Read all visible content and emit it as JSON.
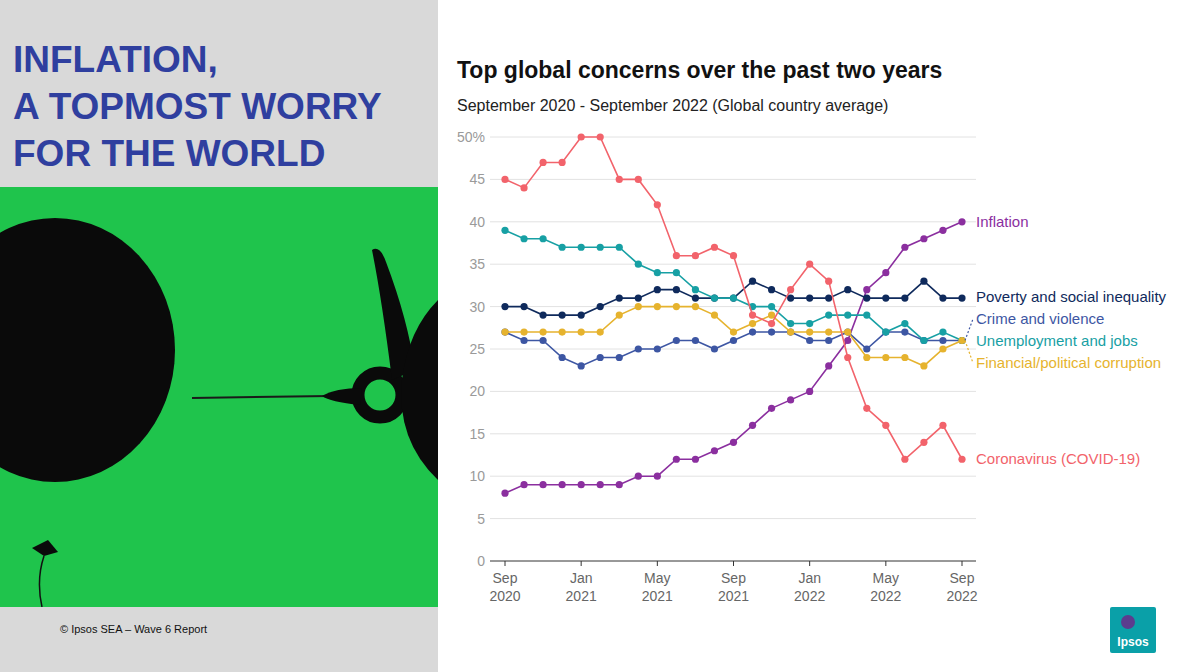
{
  "panel": {
    "title_lines": [
      "INFLATION,",
      "A TOPMOST WORRY",
      "FOR THE WORLD"
    ],
    "footer": "© Ipsos SEA – Wave 6 Report",
    "logo": "Ipsos"
  },
  "chart_data": {
    "type": "line",
    "title": "Top global concerns over the past two years",
    "subtitle": "September 2020 - September 2022 (Global country average)",
    "x": [
      "2020-09",
      "2020-10",
      "2020-11",
      "2020-12",
      "2021-01",
      "2021-02",
      "2021-03",
      "2021-04",
      "2021-05",
      "2021-06",
      "2021-07",
      "2021-08",
      "2021-09",
      "2021-10",
      "2021-11",
      "2021-12",
      "2022-01",
      "2022-02",
      "2022-03",
      "2022-04",
      "2022-05",
      "2022-06",
      "2022-07",
      "2022-08",
      "2022-09"
    ],
    "xticks": [
      {
        "value": "2020-09",
        "label": "Sep 2020"
      },
      {
        "value": "2021-01",
        "label": "Jan 2021"
      },
      {
        "value": "2021-05",
        "label": "May 2021"
      },
      {
        "value": "2021-09",
        "label": "Sep 2021"
      },
      {
        "value": "2022-01",
        "label": "Jan 2022"
      },
      {
        "value": "2022-05",
        "label": "May 2022"
      },
      {
        "value": "2022-09",
        "label": "Sep 2022"
      }
    ],
    "ylim": [
      0,
      50
    ],
    "yticks": [
      0,
      5,
      10,
      15,
      20,
      25,
      30,
      35,
      40,
      45,
      {
        "value": 50,
        "label": "50%"
      }
    ],
    "grid": true,
    "legend": "right",
    "marker": "circle",
    "series": [
      {
        "name": "Inflation",
        "color": "#8b2f9f",
        "values": [
          8,
          9,
          9,
          9,
          9,
          9,
          9,
          10,
          10,
          12,
          12,
          13,
          14,
          16,
          18,
          19,
          20,
          23,
          26,
          32,
          34,
          37,
          38,
          39,
          40
        ]
      },
      {
        "name": "Poverty and social inequality",
        "color": "#0f2a5c",
        "values": [
          30,
          30,
          29,
          29,
          29,
          30,
          31,
          31,
          32,
          32,
          31,
          31,
          31,
          33,
          32,
          31,
          31,
          31,
          32,
          31,
          31,
          31,
          33,
          31,
          31
        ]
      },
      {
        "name": "Crime and violence",
        "color": "#3d56a3",
        "values": [
          27,
          26,
          26,
          24,
          23,
          24,
          24,
          25,
          25,
          26,
          26,
          25,
          26,
          27,
          27,
          27,
          26,
          26,
          27,
          25,
          27,
          27,
          26,
          26,
          26
        ]
      },
      {
        "name": "Unemployment and jobs",
        "color": "#17a0a4",
        "values": [
          39,
          38,
          38,
          37,
          37,
          37,
          37,
          35,
          34,
          34,
          32,
          31,
          31,
          30,
          30,
          28,
          28,
          29,
          29,
          29,
          27,
          28,
          26,
          27,
          26
        ]
      },
      {
        "name": "Financial/political corruption",
        "color": "#e6b32e",
        "values": [
          27,
          27,
          27,
          27,
          27,
          27,
          29,
          30,
          30,
          30,
          30,
          29,
          27,
          28,
          29,
          27,
          27,
          27,
          27,
          24,
          24,
          24,
          23,
          25,
          26
        ]
      },
      {
        "name": "Coronavirus (COVID-19)",
        "color": "#f2636b",
        "values": [
          45,
          44,
          47,
          47,
          50,
          50,
          45,
          45,
          42,
          36,
          36,
          37,
          36,
          29,
          28,
          32,
          35,
          33,
          24,
          18,
          16,
          12,
          14,
          16,
          12
        ]
      }
    ]
  }
}
